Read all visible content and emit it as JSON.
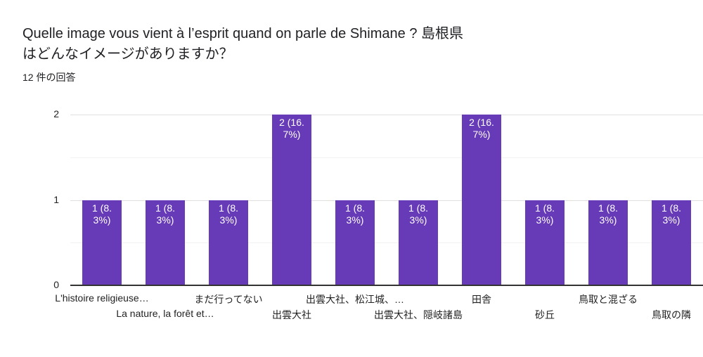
{
  "title": "Quelle image vous vient à l’esprit quand on parle de Shimane ? 島根県はどんなイメージがありますか？",
  "response_count": "12 件の回答",
  "chart_data": {
    "type": "bar",
    "categories": [
      "L'histoire religieuse…",
      "La nature, la forêt et…",
      "まだ行ってない",
      "出雲大社",
      "出雲大社、松江城、…",
      "出雲大社、隠岐諸島",
      "田舎",
      "砂丘",
      "鳥取と混ざる",
      "鳥取の隣"
    ],
    "values": [
      1,
      1,
      1,
      2,
      1,
      1,
      2,
      1,
      1,
      1
    ],
    "data_labels": [
      "1 (8.3%)",
      "1 (8.3%)",
      "1 (8.3%)",
      "2 (16.7%)",
      "1 (8.3%)",
      "1 (8.3%)",
      "2 (16.7%)",
      "1 (8.3%)",
      "1 (8.3%)",
      "1 (8.3%)"
    ],
    "ylim": [
      0,
      2
    ],
    "yticks": [
      "0",
      "1",
      "2"
    ],
    "grid": true,
    "color": "#673ab7",
    "xlabel": "",
    "ylabel": ""
  }
}
